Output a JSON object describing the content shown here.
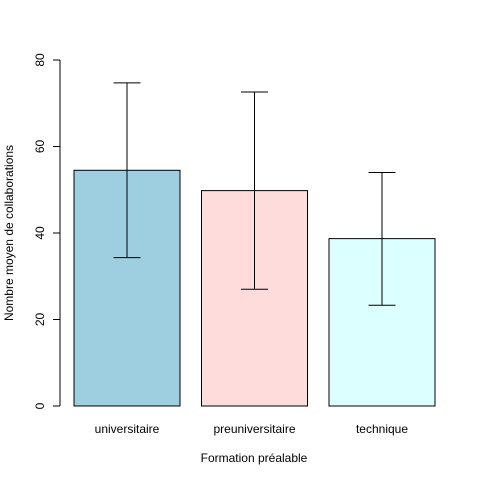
{
  "chart_data": {
    "type": "bar",
    "categories": [
      "universitaire",
      "preuniversitaire",
      "technique"
    ],
    "values": [
      54.5,
      49.8,
      38.7
    ],
    "error_low": [
      34.3,
      27.0,
      23.3
    ],
    "error_high": [
      74.7,
      72.6,
      54.0
    ],
    "colors": [
      "#9ecfe0",
      "#ffdcdc",
      "#dcffff"
    ],
    "xlabel": "Formation préalable",
    "ylabel": "Nombre moyen de collaborations",
    "ylim": [
      0,
      80
    ],
    "yticks": [
      "0",
      "20",
      "40",
      "60",
      "80"
    ],
    "grid": false,
    "legend": "none"
  }
}
